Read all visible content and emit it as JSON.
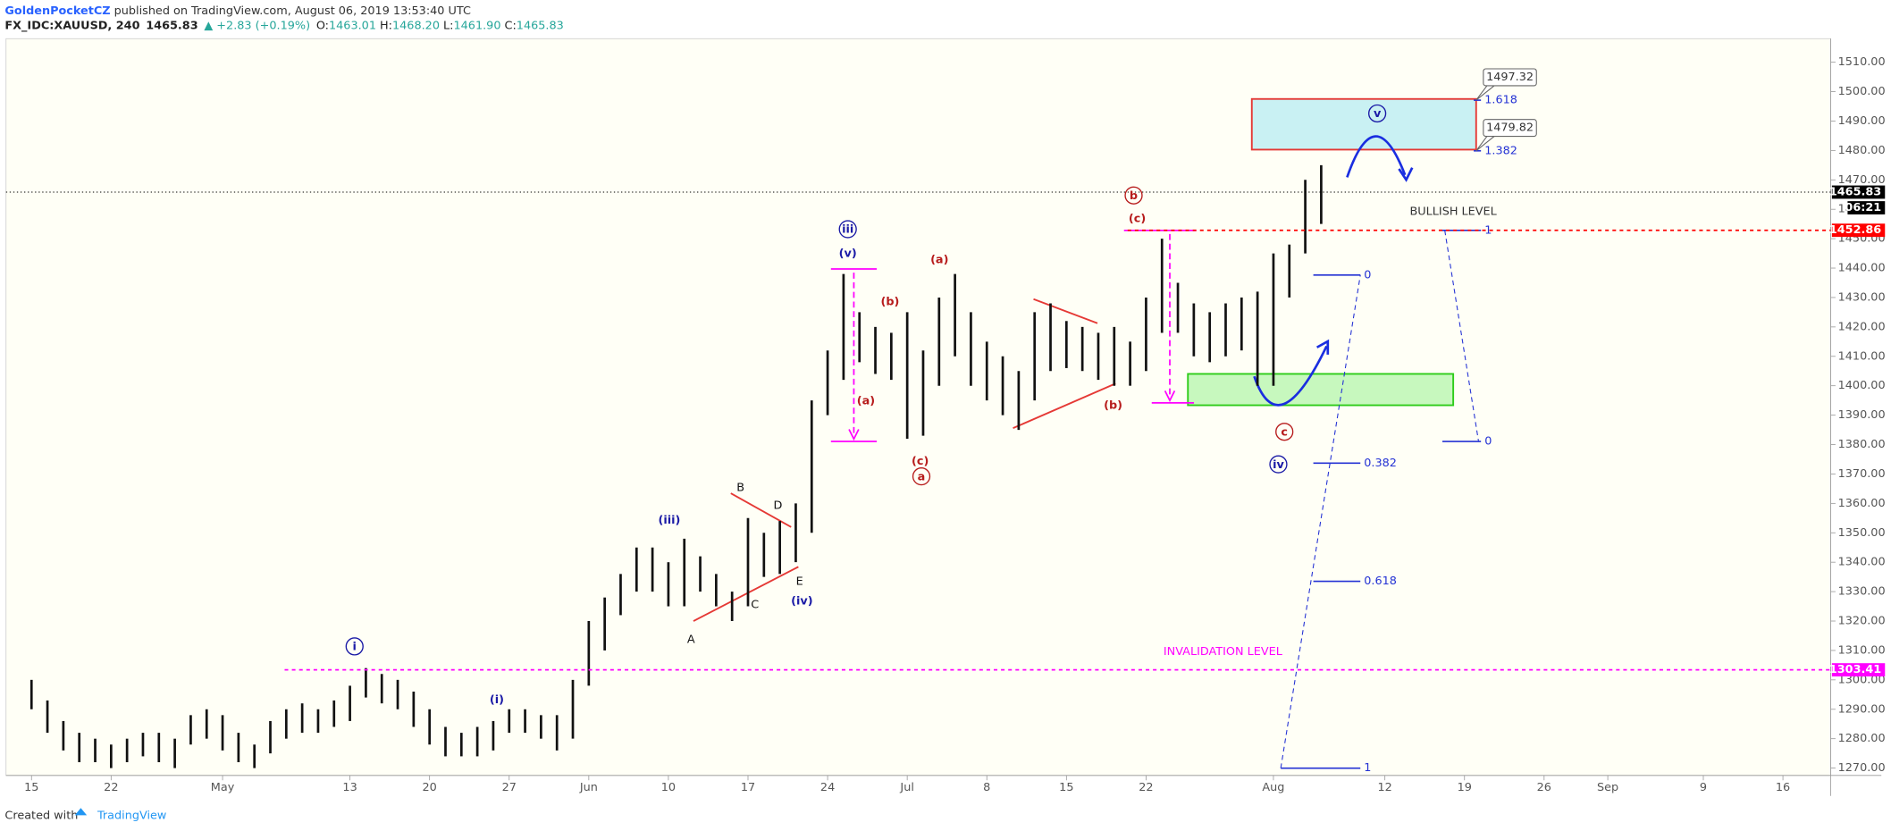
{
  "header": {
    "author": "GoldenPocketCZ",
    "published": " published on TradingView.com, August 06, 2019 13:53:40 UTC",
    "symbol": "FX_IDC:XAUUSD, 240",
    "last": "1465.83",
    "change": "▲ +2.83 (+0.19%)",
    "o_label": "O:",
    "o": "1463.01",
    "h_label": "H:",
    "h": "1468.20",
    "l_label": "L:",
    "l": "1461.90",
    "c_label": "C:",
    "c": "1465.83"
  },
  "footer": {
    "created": "Created with",
    "brand": "TradingView"
  },
  "chart_data": {
    "type": "ohlc",
    "high": [
      1300,
      1293,
      1286,
      1282,
      1280,
      1278,
      1280,
      1282,
      1282,
      1280,
      1288,
      1290,
      1288,
      1282,
      1278,
      1286,
      1290,
      1292,
      1290,
      1293,
      1298,
      1304,
      1302,
      1300,
      1296,
      1290,
      1284,
      1282,
      1284,
      1286,
      1290,
      1290,
      1288,
      1288,
      1300,
      1320,
      1328,
      1336,
      1345,
      1345,
      1340,
      1348,
      1342,
      1336,
      1330,
      1355,
      1350,
      1354,
      1360,
      1395,
      1412,
      1438,
      1425,
      1420,
      1418,
      1425,
      1412,
      1430,
      1438,
      1425,
      1415,
      1410,
      1405,
      1425,
      1428,
      1422,
      1420,
      1418,
      1420,
      1415,
      1430,
      1450,
      1435,
      1428,
      1425,
      1428,
      1430,
      1432,
      1445,
      1448,
      1470,
      1475
    ],
    "low": [
      1290,
      1282,
      1276,
      1272,
      1272,
      1270,
      1272,
      1274,
      1272,
      1270,
      1278,
      1280,
      1276,
      1272,
      1270,
      1275,
      1280,
      1282,
      1282,
      1284,
      1286,
      1294,
      1292,
      1290,
      1284,
      1278,
      1274,
      1274,
      1274,
      1276,
      1282,
      1282,
      1280,
      1276,
      1280,
      1298,
      1310,
      1322,
      1330,
      1330,
      1325,
      1325,
      1330,
      1325,
      1320,
      1325,
      1335,
      1336,
      1340,
      1350,
      1390,
      1402,
      1408,
      1404,
      1402,
      1382,
      1383,
      1400,
      1410,
      1400,
      1395,
      1390,
      1385,
      1395,
      1405,
      1406,
      1405,
      1402,
      1400,
      1400,
      1405,
      1418,
      1418,
      1410,
      1408,
      1410,
      1412,
      1400,
      1400,
      1430,
      1445,
      1455
    ],
    "xlim": [
      -1.6,
      113
    ],
    "xticks": [
      {
        "value": 0,
        "label": "15"
      },
      {
        "value": 5,
        "label": "22"
      },
      {
        "value": 12,
        "label": "May"
      },
      {
        "value": 20,
        "label": "13"
      },
      {
        "value": 25,
        "label": "20"
      },
      {
        "value": 30,
        "label": "27"
      },
      {
        "value": 35,
        "label": "Jun"
      },
      {
        "value": 40,
        "label": "10"
      },
      {
        "value": 45,
        "label": "17"
      },
      {
        "value": 50,
        "label": "24"
      },
      {
        "value": 55,
        "label": "Jul"
      },
      {
        "value": 60,
        "label": "8"
      },
      {
        "value": 65,
        "label": "15"
      },
      {
        "value": 70,
        "label": "22"
      },
      {
        "value": 78,
        "label": "Aug"
      },
      {
        "value": 85,
        "label": "12"
      },
      {
        "value": 90,
        "label": "19"
      },
      {
        "value": 95,
        "label": "26"
      },
      {
        "value": 99,
        "label": "Sep"
      },
      {
        "value": 105,
        "label": "9"
      },
      {
        "value": 110,
        "label": "16"
      }
    ],
    "ylim": [
      1267.5,
      1518
    ],
    "yticks": [
      {
        "value": 1270,
        "label": "1270.00"
      },
      {
        "value": 1280,
        "label": "1280.00"
      },
      {
        "value": 1290,
        "label": "1290.00"
      },
      {
        "value": 1300,
        "label": "1300.00"
      },
      {
        "value": 1310,
        "label": "1310.00"
      },
      {
        "value": 1320,
        "label": "1320.00"
      },
      {
        "value": 1330,
        "label": "1330.00"
      },
      {
        "value": 1340,
        "label": "1340.00"
      },
      {
        "value": 1350,
        "label": "1350.00"
      },
      {
        "value": 1360,
        "label": "1360.00"
      },
      {
        "value": 1370,
        "label": "1370.00"
      },
      {
        "value": 1380,
        "label": "1380.00"
      },
      {
        "value": 1390,
        "label": "1390.00"
      },
      {
        "value": 1400,
        "label": "1400.00"
      },
      {
        "value": 1410,
        "label": "1410.00"
      },
      {
        "value": 1420,
        "label": "1420.00"
      },
      {
        "value": 1430,
        "label": "1430.00"
      },
      {
        "value": 1440,
        "label": "1440.00"
      },
      {
        "value": 1450,
        "label": "1450.00"
      },
      {
        "value": 1460,
        "label": "1460.00"
      },
      {
        "value": 1470,
        "label": "1470.00"
      },
      {
        "value": 1480,
        "label": "1480.00"
      },
      {
        "value": 1490,
        "label": "1490.00"
      },
      {
        "value": 1500,
        "label": "1500.00"
      },
      {
        "value": 1510,
        "label": "1510.00"
      }
    ],
    "levels": [
      {
        "value": 1465.83,
        "color": "#000000"
      },
      {
        "value": 1452.86,
        "color": "#ff0000"
      },
      {
        "value": 1303.41,
        "color": "#ff00ff"
      }
    ],
    "countdown": "06:21",
    "targets": [
      1497.32,
      1479.82
    ],
    "annotations": [
      "i",
      "(i)",
      "(iii)",
      "A",
      "B",
      "C",
      "D",
      "E",
      "(iv)",
      "iii",
      "(v)",
      "(a)",
      "(b)",
      "(a)",
      "(c)",
      "a",
      "(b)",
      "b",
      "(c)",
      "c",
      "iv",
      "v",
      "BULLISH LEVEL",
      "INVALIDATION LEVEL"
    ],
    "fib_labels": [
      "1.618",
      "1.382",
      "0",
      "0.382",
      "0.618",
      "1",
      "1",
      "0"
    ]
  }
}
